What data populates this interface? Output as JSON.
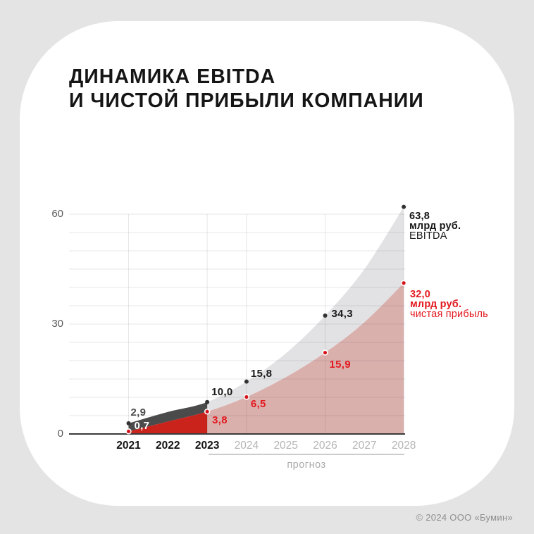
{
  "page": {
    "background": "#e5e4e4",
    "card_color": "#ffffff"
  },
  "title": {
    "line1": "ДИНАМИКА EBITDA",
    "line2": "И ЧИСТОЙ ПРИБЫЛИ КОМПАНИИ"
  },
  "footer": {
    "copyright": "© 2024 ООО «Бумин»"
  },
  "chart_data": {
    "type": "area",
    "title": "Динамика EBITDA и чистой прибыли компании",
    "unit": "млрд руб.",
    "x_categories": [
      "2021",
      "2022",
      "2023",
      "2024",
      "2025",
      "2026",
      "2027",
      "2028"
    ],
    "historical_years": [
      "2021",
      "2022",
      "2023"
    ],
    "forecast_years": [
      "2024",
      "2025",
      "2026",
      "2027",
      "2028"
    ],
    "forecast_label": "прогноз",
    "y_ticks": [
      0,
      30,
      60
    ],
    "ylim": [
      0,
      65
    ],
    "grid": true,
    "series": [
      {
        "name": "EBITDA",
        "values": [
          2.9,
          null,
          10.0,
          15.8,
          null,
          34.3,
          null,
          63.8
        ],
        "plot_values": [
          2.9,
          6.0,
          8.7,
          14.3,
          22.0,
          32.3,
          45.0,
          62.0
        ],
        "marker_indices": [
          0,
          2,
          3,
          5,
          7
        ],
        "point_labels": [
          {
            "i": 0,
            "text": "2,9",
            "dx": 3,
            "dy": -15,
            "color": "#4d4d4d"
          },
          {
            "i": 2,
            "text": "10,0",
            "dx": 6,
            "dy": -14,
            "color": "#1b1b1b"
          },
          {
            "i": 3,
            "text": "15,8",
            "dx": 6,
            "dy": -11,
            "color": "#1b1b1b"
          },
          {
            "i": 5,
            "text": "34,3",
            "dx": 9,
            "dy": -2,
            "color": "#1b1b1b"
          }
        ],
        "colors": {
          "historical": "#4b4b4b",
          "forecast": "rgba(221,221,223,0.85)",
          "dot": "#333333",
          "label": "#1b1b1b"
        }
      },
      {
        "name": "чистая прибыль",
        "values": [
          0.7,
          null,
          3.8,
          6.5,
          null,
          15.9,
          null,
          32.0
        ],
        "plot_values": [
          0.7,
          3.4,
          6.1,
          10.1,
          15.5,
          22.2,
          30.5,
          41.2
        ],
        "marker_indices": [
          0,
          2,
          3,
          5,
          7
        ],
        "point_labels": [
          {
            "i": 0,
            "text": "0,7",
            "dx": 8,
            "dy": -7,
            "color": "#ffffff"
          },
          {
            "i": 2,
            "text": "3,8",
            "dx": 7,
            "dy": 13,
            "color": "#e2191f"
          },
          {
            "i": 3,
            "text": "6,5",
            "dx": 6,
            "dy": 11,
            "color": "#e2191f"
          },
          {
            "i": 5,
            "text": "15,9",
            "dx": 6,
            "dy": 17,
            "color": "#e2191f"
          }
        ],
        "colors": {
          "historical": "#c9231c",
          "forecast": "rgba(209,156,152,0.8)",
          "dot": "#d5151c",
          "label": "#e2191f"
        }
      }
    ],
    "end_annotations": [
      {
        "value": "63,8",
        "unit": "млрд руб.",
        "label": "EBITDA",
        "color": "#161616"
      },
      {
        "value": "32,0",
        "unit": "млрд руб.",
        "label": "чистая прибыль",
        "color": "#e2191f"
      }
    ],
    "layout_hints": {
      "vgrid_year_indices": [
        0,
        2,
        3,
        5,
        7
      ],
      "x_axis_dark_count": 3,
      "gridline_color": "rgba(70,70,70,0.13)",
      "baseline_color": "#3b3b3b",
      "annotations_position": "right"
    }
  }
}
